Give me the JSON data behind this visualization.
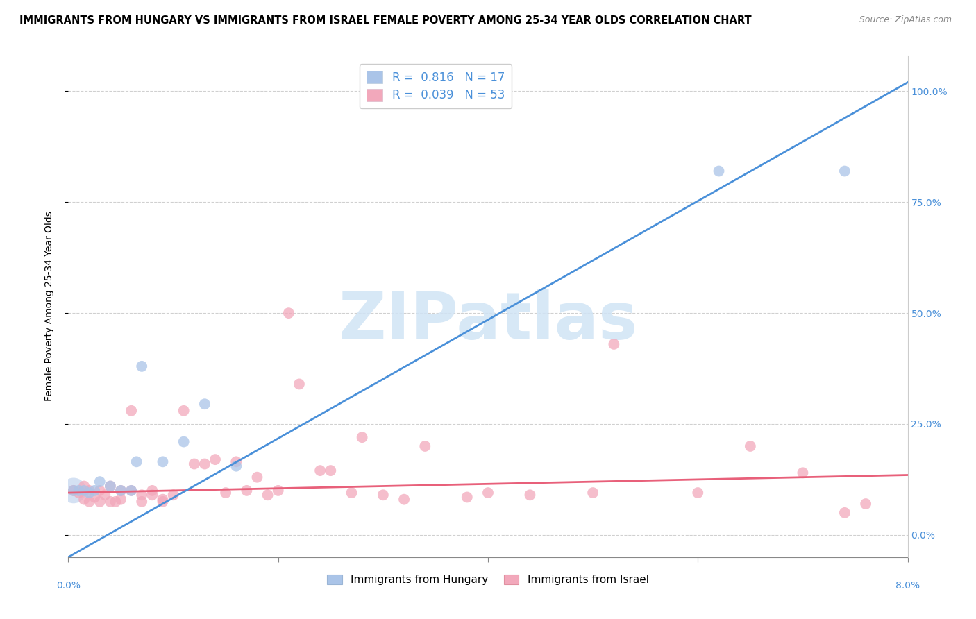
{
  "title": "IMMIGRANTS FROM HUNGARY VS IMMIGRANTS FROM ISRAEL FEMALE POVERTY AMONG 25-34 YEAR OLDS CORRELATION CHART",
  "source": "Source: ZipAtlas.com",
  "ylabel": "Female Poverty Among 25-34 Year Olds",
  "legend_hungary": "Immigrants from Hungary",
  "legend_israel": "Immigrants from Israel",
  "R_hungary": 0.816,
  "N_hungary": 17,
  "R_israel": 0.039,
  "N_israel": 53,
  "hungary_color": "#aac4e8",
  "israel_color": "#f2a8bb",
  "hungary_line_color": "#4a90d9",
  "israel_line_color": "#e8607a",
  "right_yticklabels": [
    "0.0%",
    "25.0%",
    "50.0%",
    "75.0%",
    "100.0%"
  ],
  "right_ytick_vals": [
    0.0,
    0.25,
    0.5,
    0.75,
    1.0
  ],
  "xlim": [
    0.0,
    0.08
  ],
  "ylim": [
    -0.05,
    1.08
  ],
  "xlim_pct": [
    0.0,
    8.0
  ],
  "hungary_line_x0": 0.0,
  "hungary_line_y0": -0.05,
  "hungary_line_x1": 0.08,
  "hungary_line_y1": 1.02,
  "israel_line_x0": 0.0,
  "israel_line_y0": 0.095,
  "israel_line_x1": 0.08,
  "israel_line_y1": 0.135,
  "hungary_pts_x": [
    0.0005,
    0.001,
    0.0015,
    0.002,
    0.0025,
    0.003,
    0.004,
    0.005,
    0.006,
    0.0065,
    0.007,
    0.009,
    0.011,
    0.013,
    0.016,
    0.062,
    0.074
  ],
  "hungary_pts_y": [
    0.1,
    0.1,
    0.1,
    0.095,
    0.1,
    0.12,
    0.11,
    0.1,
    0.1,
    0.165,
    0.38,
    0.165,
    0.21,
    0.295,
    0.155,
    0.82,
    0.82
  ],
  "israel_pts_x": [
    0.0005,
    0.001,
    0.0015,
    0.0015,
    0.002,
    0.002,
    0.0025,
    0.003,
    0.003,
    0.0035,
    0.004,
    0.004,
    0.0045,
    0.005,
    0.005,
    0.006,
    0.006,
    0.007,
    0.007,
    0.008,
    0.008,
    0.009,
    0.009,
    0.01,
    0.011,
    0.012,
    0.013,
    0.014,
    0.015,
    0.016,
    0.017,
    0.018,
    0.019,
    0.02,
    0.021,
    0.022,
    0.024,
    0.025,
    0.027,
    0.028,
    0.03,
    0.032,
    0.034,
    0.038,
    0.04,
    0.044,
    0.05,
    0.052,
    0.06,
    0.065,
    0.07,
    0.074,
    0.076
  ],
  "israel_pts_y": [
    0.1,
    0.095,
    0.08,
    0.11,
    0.075,
    0.1,
    0.085,
    0.075,
    0.1,
    0.09,
    0.075,
    0.11,
    0.075,
    0.08,
    0.1,
    0.28,
    0.1,
    0.075,
    0.09,
    0.1,
    0.09,
    0.08,
    0.075,
    0.09,
    0.28,
    0.16,
    0.16,
    0.17,
    0.095,
    0.165,
    0.1,
    0.13,
    0.09,
    0.1,
    0.5,
    0.34,
    0.145,
    0.145,
    0.095,
    0.22,
    0.09,
    0.08,
    0.2,
    0.085,
    0.095,
    0.09,
    0.095,
    0.43,
    0.095,
    0.2,
    0.14,
    0.05,
    0.07
  ],
  "watermark_text": "ZIPatlas",
  "watermark_color": "#d0e4f5",
  "background_color": "#ffffff",
  "grid_color": "#d0d0d0",
  "title_fontsize": 10.5,
  "source_fontsize": 9,
  "axis_label_fontsize": 10,
  "tick_fontsize": 10,
  "legend_fontsize": 12,
  "scatter_size": 130,
  "scatter_alpha": 0.75
}
